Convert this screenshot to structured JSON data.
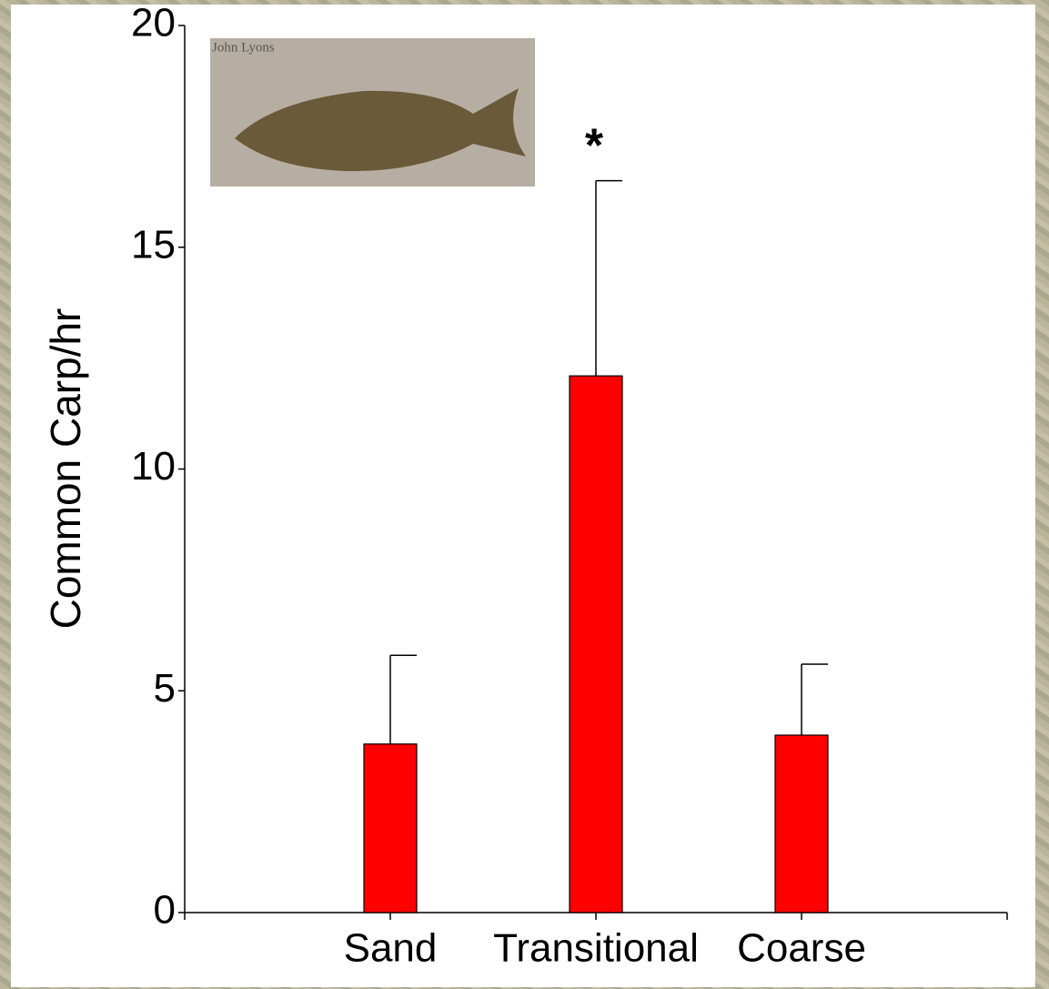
{
  "chart_data": {
    "type": "bar",
    "ylabel": "Common Carp/hr",
    "categories": [
      "Sand",
      "Transitional",
      "Coarse"
    ],
    "values": [
      3.8,
      12.1,
      4.0
    ],
    "errors": [
      2.0,
      4.4,
      1.6
    ],
    "color": "#ff0000",
    "ylim": [
      0,
      20
    ],
    "yticks": [
      0,
      5,
      10,
      15,
      20
    ],
    "annotations": [
      {
        "text": "*",
        "category": "Transitional"
      }
    ],
    "image_credit": "John Lyons"
  }
}
